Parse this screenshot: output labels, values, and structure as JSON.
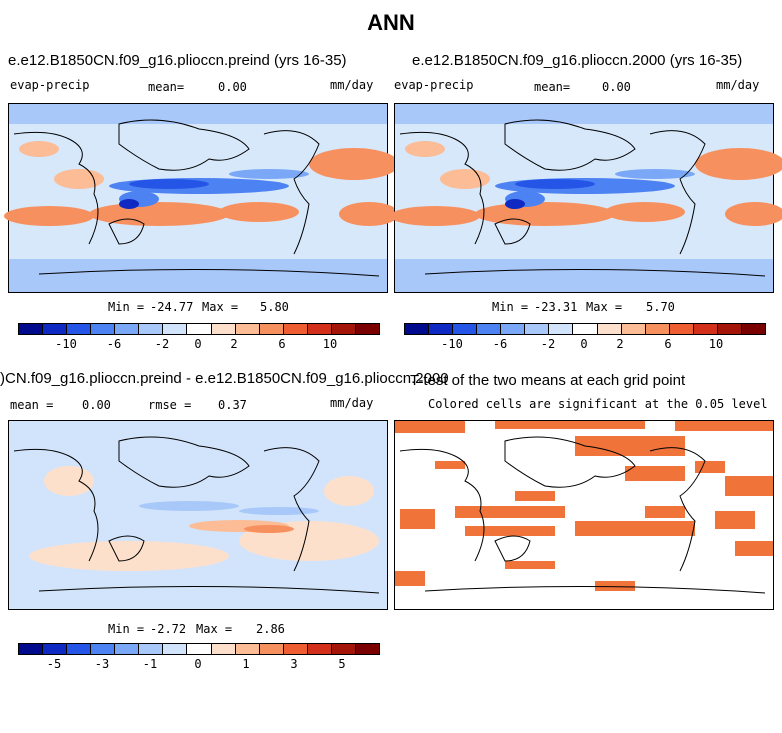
{
  "title": "ANN",
  "colors": {
    "scale": [
      "#000a8c",
      "#0f29c3",
      "#2455e6",
      "#4d82f2",
      "#7aa8f7",
      "#a8c8fa",
      "#d2e4fb",
      "#ffffff",
      "#fde0cc",
      "#fbbc96",
      "#f7905f",
      "#ef5e33",
      "#d3301c",
      "#a31409",
      "#7a0000"
    ]
  },
  "panels": {
    "p1": {
      "title": "e.e12.B1850CN.f09_g16.plioccn.preind (yrs 16-35)",
      "left_label": "evap-precip",
      "mean_label": "mean=",
      "mean_value": "0.00",
      "units": "mm/day",
      "min_label": "Min =",
      "min_value": "-24.77",
      "max_label": "Max =",
      "max_value": "5.80",
      "ticks": [
        "-10",
        "-6",
        "-2",
        "0",
        "2",
        "6",
        "10"
      ]
    },
    "p2": {
      "title": "e.e12.B1850CN.f09_g16.plioccn.2000 (yrs 16-35)",
      "left_label": "evap-precip",
      "mean_label": "mean=",
      "mean_value": "0.00",
      "units": "mm/day",
      "min_label": "Min =",
      "min_value": "-23.31",
      "max_label": "Max =",
      "max_value": "5.70",
      "ticks": [
        "-10",
        "-6",
        "-2",
        "0",
        "2",
        "6",
        "10"
      ]
    },
    "p3": {
      "title": ")CN.f09_g16.plioccn.preind - e.e12.B1850CN.f09_g16.plioccn.2000",
      "mean_label": "mean =",
      "mean_value": "0.00",
      "rmse_label": "rmse =",
      "rmse_value": "0.37",
      "units": "mm/day",
      "min_label": "Min =",
      "min_value": "-2.72",
      "max_label": "Max =",
      "max_value": "2.86",
      "ticks": [
        "-5",
        "-3",
        "-1",
        "0",
        "1",
        "3",
        "5"
      ]
    },
    "p4": {
      "title": "T-test of the two means at each grid point",
      "subtitle": "Colored cells are significant at the 0.05 level"
    }
  }
}
